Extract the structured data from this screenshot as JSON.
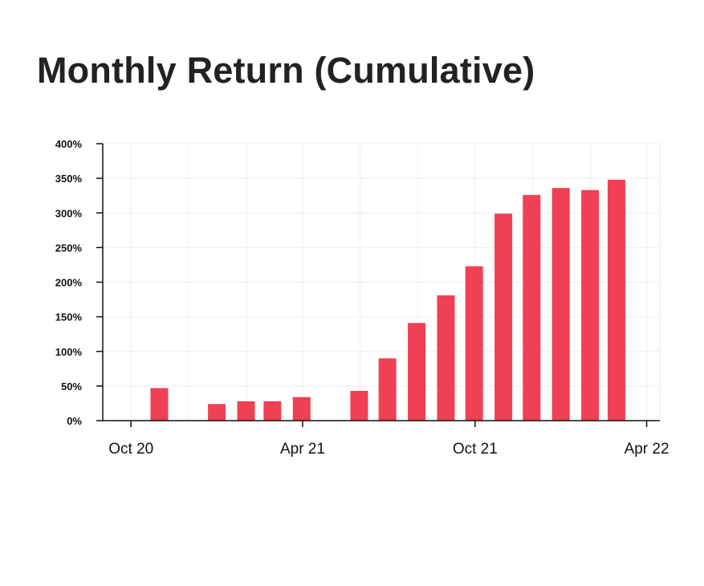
{
  "title": "Monthly Return (Cumulative)",
  "colors": {
    "bar": "#ef4153",
    "axis": "#111111",
    "grid": "#eeeeee"
  },
  "chart_data": {
    "type": "bar",
    "title": "Monthly Return (Cumulative)",
    "xlabel": "",
    "ylabel": "",
    "ylim": [
      0,
      400
    ],
    "grid": true,
    "legend": "none",
    "y_ticks": [
      "0%",
      "50%",
      "100%",
      "150%",
      "200%",
      "250%",
      "300%",
      "350%",
      "400%"
    ],
    "x_tick_labels": [
      {
        "label": "Oct 20",
        "date": "2020-10-01"
      },
      {
        "label": "Apr 21",
        "date": "2021-04-01"
      },
      {
        "label": "Oct 21",
        "date": "2021-10-01"
      },
      {
        "label": "Apr 22",
        "date": "2022-04-01"
      }
    ],
    "x_range": [
      "2020-09-01",
      "2022-04-15"
    ],
    "bars": [
      {
        "date": "2020-10-31",
        "value": 47
      },
      {
        "date": "2020-12-31",
        "value": 24
      },
      {
        "date": "2021-01-31",
        "value": 28
      },
      {
        "date": "2021-02-28",
        "value": 28
      },
      {
        "date": "2021-03-31",
        "value": 34
      },
      {
        "date": "2021-05-31",
        "value": 43
      },
      {
        "date": "2021-06-30",
        "value": 90
      },
      {
        "date": "2021-07-31",
        "value": 141
      },
      {
        "date": "2021-08-31",
        "value": 181
      },
      {
        "date": "2021-09-30",
        "value": 223
      },
      {
        "date": "2021-10-31",
        "value": 299
      },
      {
        "date": "2021-11-30",
        "value": 326
      },
      {
        "date": "2021-12-31",
        "value": 336
      },
      {
        "date": "2022-01-31",
        "value": 333
      },
      {
        "date": "2022-02-28",
        "value": 348
      }
    ]
  }
}
